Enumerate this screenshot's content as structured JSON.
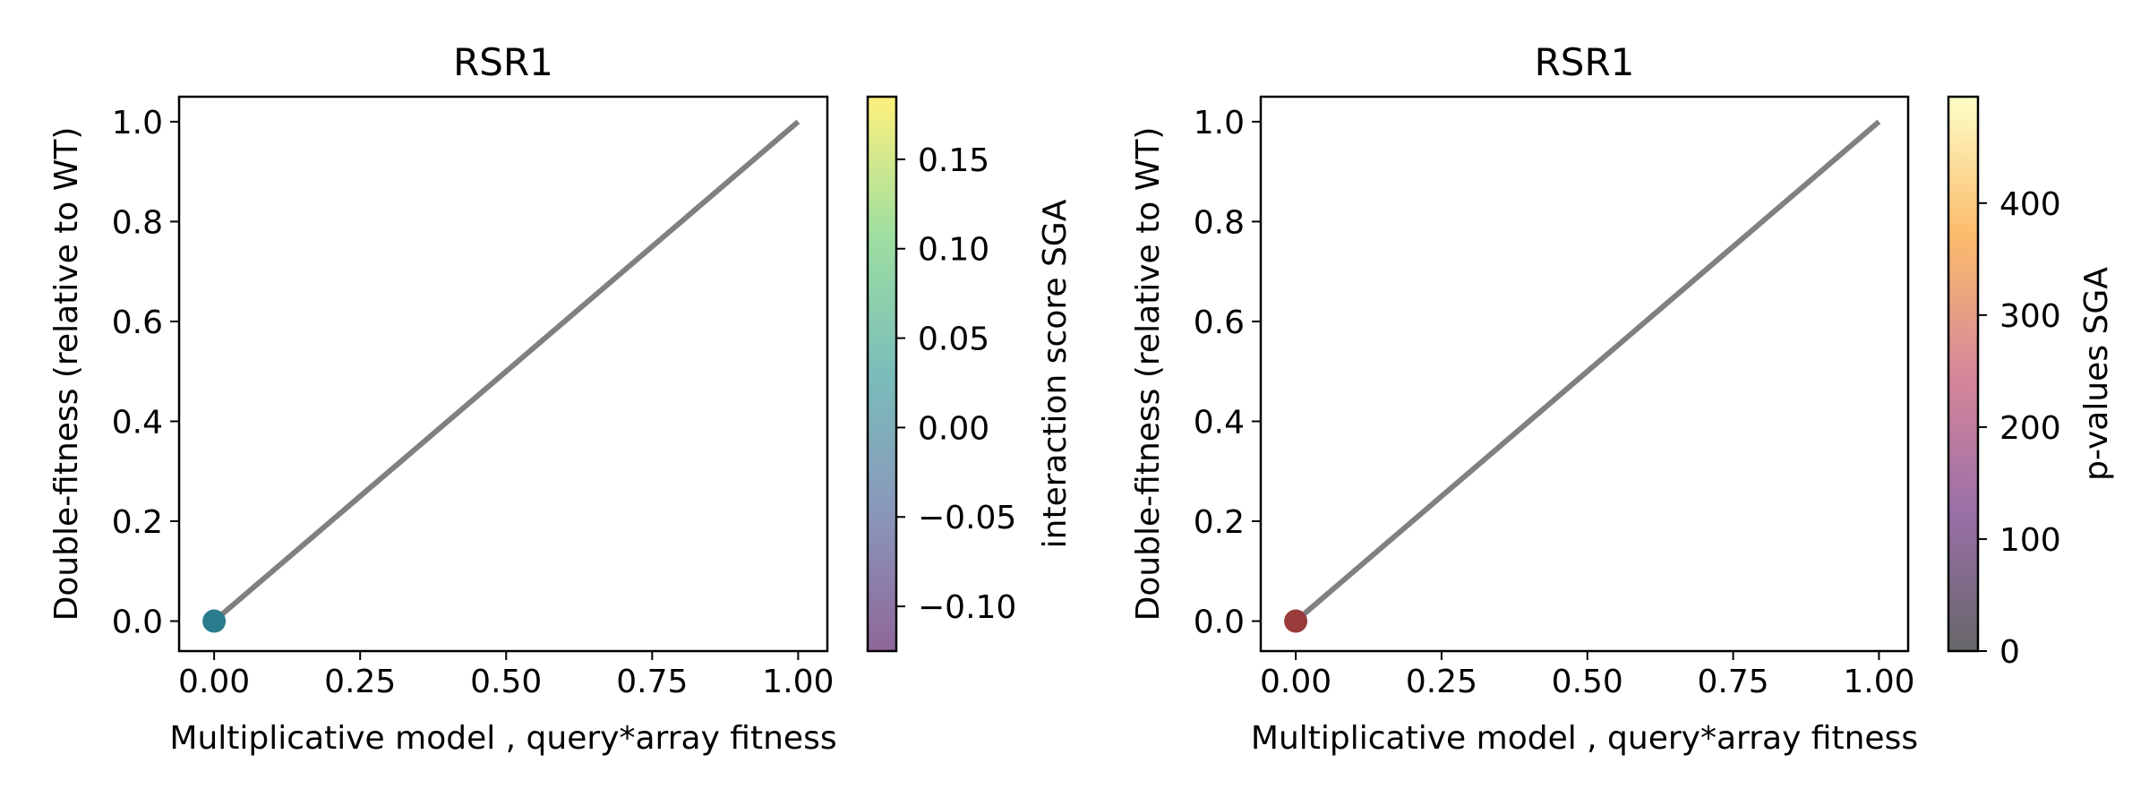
{
  "chart_data": [
    {
      "type": "scatter",
      "title": "RSR1",
      "xlabel": "Multiplicative model , query*array fitness",
      "ylabel": "Double-fitness (relative to WT)",
      "xlim": [
        -0.06,
        1.05
      ],
      "ylim": [
        -0.06,
        1.05
      ],
      "xticks": [
        "0.00",
        "0.25",
        "0.50",
        "0.75",
        "1.00"
      ],
      "yticks": [
        "0.0",
        "0.2",
        "0.4",
        "0.6",
        "0.8",
        "1.0"
      ],
      "points": [
        {
          "x": 0.0,
          "y": 0.0,
          "c": 0.0
        }
      ],
      "point_color": "#2a7b8c",
      "reference_line": {
        "from": [
          0,
          0
        ],
        "to": [
          1,
          1
        ],
        "color": "#808080"
      },
      "grid": false,
      "colorbar": {
        "label": "interaction score SGA",
        "range": [
          -0.125,
          0.185
        ],
        "ticks": [
          "−0.10",
          "−0.05",
          "0.00",
          "0.05",
          "0.10",
          "0.15"
        ],
        "colormap": "viridis",
        "alpha": 0.6
      }
    },
    {
      "type": "scatter",
      "title": "RSR1",
      "xlabel": "Multiplicative model , query*array fitness",
      "ylabel": "Double-fitness (relative to WT)",
      "xlim": [
        -0.06,
        1.05
      ],
      "ylim": [
        -0.06,
        1.05
      ],
      "xticks": [
        "0.00",
        "0.25",
        "0.50",
        "0.75",
        "1.00"
      ],
      "yticks": [
        "0.0",
        "0.2",
        "0.4",
        "0.6",
        "0.8",
        "1.0"
      ],
      "points": [
        {
          "x": 0.0,
          "y": 0.0,
          "c": 0
        }
      ],
      "point_color": "#9a3b3b",
      "reference_line": {
        "from": [
          0,
          0
        ],
        "to": [
          1,
          1
        ],
        "color": "#808080"
      },
      "grid": false,
      "colorbar": {
        "label": "p-values SGA",
        "range": [
          0,
          495
        ],
        "ticks": [
          "0",
          "100",
          "200",
          "300",
          "400"
        ],
        "colormap": "inferno",
        "alpha": 0.6
      }
    }
  ]
}
